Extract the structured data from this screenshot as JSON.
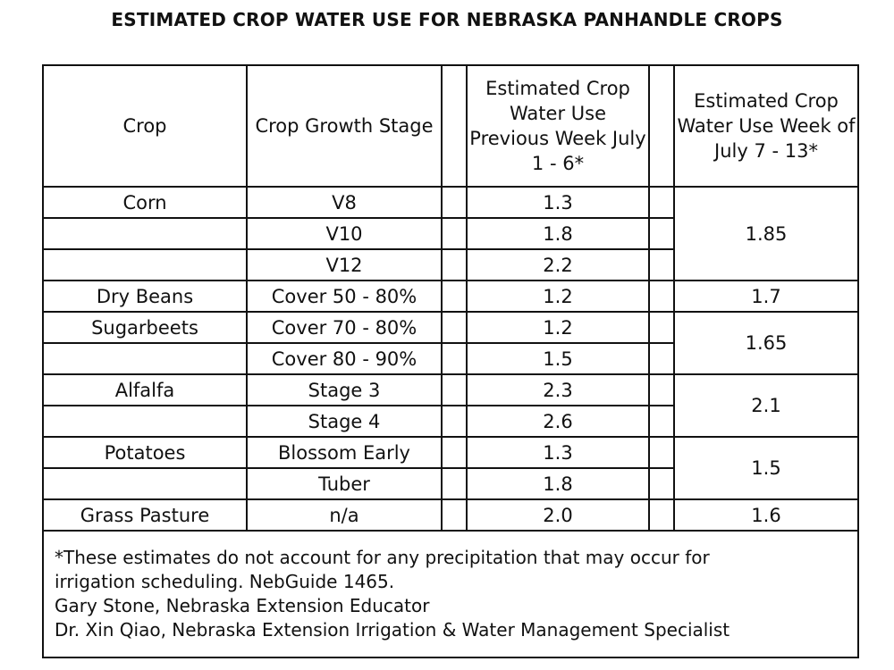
{
  "title": "ESTIMATED CROP WATER USE FOR NEBRASKA PANHANDLE CROPS",
  "header": {
    "crop": "Crop",
    "stage": "Crop Growth Stage",
    "prev": "Estimated Crop Water Use Previous Week July 1 - 6*",
    "week": "Estimated Crop Water Use Week of July 7 - 13*"
  },
  "rows": [
    {
      "crop": "Corn",
      "stage": "V8",
      "prev": "1.3",
      "week": "1.85"
    },
    {
      "crop": "",
      "stage": "V10",
      "prev": "1.8"
    },
    {
      "crop": "",
      "stage": "V12",
      "prev": "2.2"
    },
    {
      "crop": "Dry Beans",
      "stage": "Cover 50 - 80%",
      "prev": "1.2",
      "week": "1.7"
    },
    {
      "crop": "Sugarbeets",
      "stage": "Cover 70 - 80%",
      "prev": "1.2",
      "week": "1.65"
    },
    {
      "crop": "",
      "stage": "Cover 80 - 90%",
      "prev": "1.5"
    },
    {
      "crop": "Alfalfa",
      "stage": "Stage 3",
      "prev": "2.3",
      "week": "2.1"
    },
    {
      "crop": "",
      "stage": "Stage 4",
      "prev": "2.6"
    },
    {
      "crop": "Potatoes",
      "stage": "Blossom Early",
      "prev": "1.3",
      "week": "1.5"
    },
    {
      "crop": "",
      "stage": "Tuber",
      "prev": "1.8"
    },
    {
      "crop": "Grass Pasture",
      "stage": "n/a",
      "prev": "2.0",
      "week": "1.6"
    }
  ],
  "footer": {
    "line1": "*These estimates do not account for any precipitation that may occur for",
    "line2": "irrigation scheduling.  NebGuide 1465.",
    "line3": "Gary Stone, Nebraska Extension Educator",
    "line4": "Dr. Xin Qiao, Nebraska Extension Irrigation & Water Management Specialist"
  }
}
